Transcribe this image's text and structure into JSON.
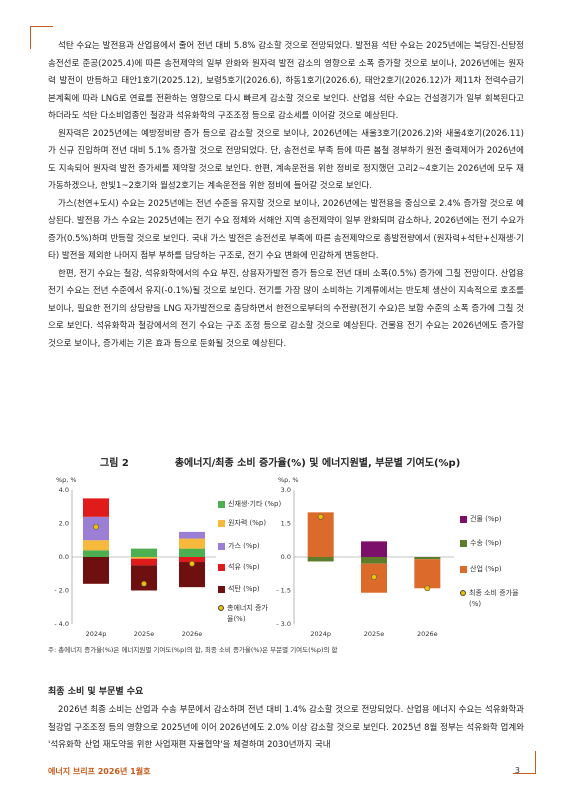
{
  "paragraphs_top": [
    "석탄 수요는 발전용과 산업용에서 줄어 전년 대비 5.8% 감소할 것으로 전망되었다. 발전용 석탄 수요는 2025년에는 북당진-신탕정 송전선로 준공(2025.4)에 따른 송전제약의 일부 완화와 원자력 발전 감소의 영향으로 소폭 증가할 것으로 보이나, 2026년에는 원자력 발전이 반등하고 태안1호기(2025.12), 보령5호기(2026.6), 하동1호기(2026.6), 태안2호기(2026.12)가 제11차 전력수급기본계획에 따라 LNG로 연료를 전환하는 영향으로 다시 빠르게 감소할 것으로 보인다. 산업용 석탄 수요는 건설경기가 일부 회복된다고 하더라도 석탄 다소비업종인 철강과 석유화학의 구조조정 등으로 감소세를 이어갈 것으로 예상된다.",
    "원자력은 2025년에는 예방정비량 증가 등으로 감소할 것으로 보이나, 2026년에는 새울3호기(2026.2)와 새울4호기(2026.11)가 신규 진입하며 전년 대비 5.1% 증가할 것으로 전망되었다. 단, 송전선로 부족 등에 따른 봄철 경부하기 원전 출력제어가 2026년에도 지속되어 원자력 발전 증가세를 제약할 것으로 보인다. 한편, 계속운전을 위한 정비로 정지했던 고리2~4호기는 2026년에 모두 재가동하겠으나, 한빛1~2호기와 월성2호기는 계속운전을 위한 정비에 들어갈 것으로 보인다.",
    "가스(천연+도시) 수요는 2025년에는 전년 수준을 유지할 것으로 보이나, 2026년에는 발전용을 중심으로 2.4% 증가할 것으로 예상된다. 발전용 가스 수요는 2025년에는 전기 수요 정체와 서해안 지역 송전제약이 일부 완화되며 감소하나, 2026년에는 전기 수요가 증가(0.5%)하며 반등할 것으로 보인다. 국내 가스 발전은 송전선로 부족에 따른 송전제약으로 총발전량에서 (원자력+석탄+신재생·기타) 발전을 제외한 나머지 첨부 부하를 담당하는 구조로, 전기 수요 변화에 민감하게 변동한다.",
    "한편, 전기 수요는 철강, 석유화학에서의 수요 부진, 상용자가발전 증가 등으로 전년 대비 소폭(0.5%) 증가에 그칠 전망이다. 산업용 전기 수요는 전년 수준에서 유지(-0.1%)될 것으로 보인다. 전기를 가장 많이 소비하는 기계류에서는 반도체 생산이 지속적으로 호조를 보이나, 필요한 전기의 상당량을 LNG 자가발전으로 충당하면서 한전으로부터의 수전량(전기 수요)은 보합 수준의 소폭 증가에 그칠 것으로 보인다. 석유화학과 철강에서의 전기 수요는 구조 조정 등으로 감소할 것으로 예상된다. 건물용 전기 수요는 2026년에도 증가할 것으로 보이나, 증가세는 기온 효과 등으로 둔화될 것으로 예상된다."
  ],
  "chart": {
    "figure_label": "그림 2",
    "title": "총에너지/최종 소비 증가율(%) 및 에너지원별, 부문별 기여도(%p)",
    "note": "주: 총에너지 증가율(%)은 에너지원별 기여도(%p)의 합, 최종 소비 증가율(%)은 부문별 기여도(%p)의 합"
  },
  "chart_data": [
    {
      "type": "bar",
      "stacked": true,
      "ylabel": "%p, %",
      "ylim": [
        -4.0,
        4.0
      ],
      "yticks": [
        "4.0",
        "2.0",
        "0.0",
        "- 2.0",
        "- 4.0"
      ],
      "categories": [
        "2024p",
        "2025e",
        "2026e"
      ],
      "series": [
        {
          "name": "신재생·기타 (%p)",
          "color": "#4caf50",
          "values": [
            0.4,
            0.5,
            0.5
          ]
        },
        {
          "name": "원자력 (%p)",
          "color": "#f6b93b",
          "values": [
            0.6,
            -0.1,
            0.6
          ]
        },
        {
          "name": "가스 (%p)",
          "color": "#9b7fd4",
          "values": [
            1.4,
            0.0,
            0.4
          ]
        },
        {
          "name": "석유 (%p)",
          "color": "#e01b1b",
          "values": [
            1.1,
            -0.4,
            -0.3
          ]
        },
        {
          "name": "석탄 (%p)",
          "color": "#6e1010",
          "values": [
            -1.6,
            -1.5,
            -1.5
          ]
        }
      ],
      "line": {
        "name": "총에너지 증가율(%)",
        "color": "#f0c000",
        "values": [
          1.8,
          -1.6,
          -0.4
        ]
      }
    },
    {
      "type": "bar",
      "stacked": true,
      "ylabel": "%p, %",
      "ylim": [
        -3.0,
        3.0
      ],
      "yticks": [
        "3.0",
        "1.5",
        "0.0",
        "- 1.5",
        "- 3.0"
      ],
      "categories": [
        "2024p",
        "2025e",
        "2026e"
      ],
      "series": [
        {
          "name": "건물 (%p)",
          "color": "#7b0f6a",
          "values": [
            0.0,
            0.7,
            0.0
          ]
        },
        {
          "name": "수송 (%p)",
          "color": "#5e7d2b",
          "values": [
            -0.2,
            -0.3,
            -0.1
          ]
        },
        {
          "name": "산업 (%p)",
          "color": "#dc6a2a",
          "values": [
            2.0,
            -1.3,
            -1.3
          ]
        }
      ],
      "line": {
        "name": "최종 소비 증가율(%)",
        "color": "#f0c000",
        "values": [
          1.8,
          -0.9,
          -1.4
        ]
      }
    }
  ],
  "section_title": "최종 소비 및 부문별 수요",
  "paragraphs_bottom": [
    "2026년 최종 소비는 산업과 수송 부문에서 감소하며 전년 대비 1.4% 감소할 것으로 전망되었다. 산업용 에너지 수요는 석유화학과 철강업 구조조정 등의 영향으로 2025년에 이어 2026년에도 2.0% 이상 감소할 것으로 보인다. 2025년 8월 정부는 석유화학 업계와 '석유화학 산업 재도약을 위한 사업재편 자율협약'을 체결하며 2030년까지 국내"
  ],
  "footer": {
    "title": "에너지 브리프 2026년 1월호",
    "page": "3"
  },
  "colors": {
    "accent": "#c65b1a"
  }
}
